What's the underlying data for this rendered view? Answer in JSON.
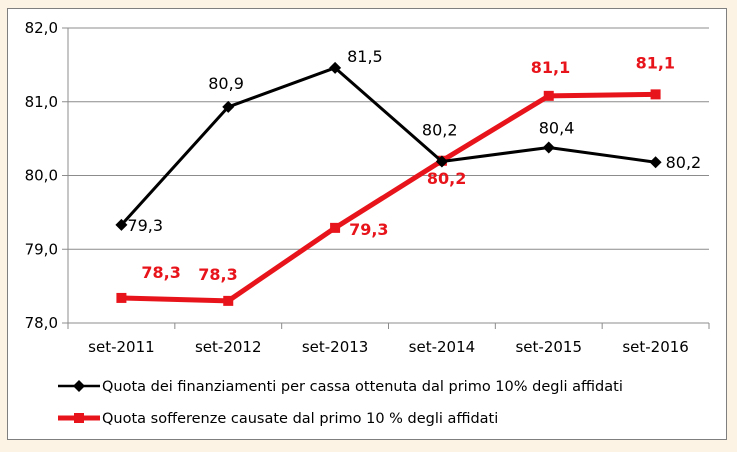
{
  "chart_data": {
    "type": "line",
    "title": "",
    "xlabel": "",
    "ylabel": "",
    "categories": [
      "set-2011",
      "set-2012",
      "set-2013",
      "set-2014",
      "set-2015",
      "set-2016"
    ],
    "ylim": [
      78.0,
      82.0
    ],
    "yticks": [
      "78,0",
      "79,0",
      "80,0",
      "81,0",
      "82,0"
    ],
    "grid": true,
    "legend_position": "bottom",
    "series": [
      {
        "name": "Quota dei finanziamenti per cassa ottenuta dal primo 10% degli affidati",
        "color": "#000000",
        "marker": "diamond",
        "values": [
          79.33,
          80.93,
          81.46,
          80.19,
          80.38,
          80.18
        ],
        "labels": [
          "79,3",
          "80,9",
          "81,5",
          "80,2",
          "80,4",
          "80,2"
        ]
      },
      {
        "name": "Quota sofferenze causate dal primo 10 % degli affidati",
        "color": "#e8141b",
        "marker": "square",
        "values": [
          78.34,
          78.3,
          79.29,
          80.2,
          81.08,
          81.1
        ],
        "labels": [
          "78,3",
          "78,3",
          "79,3",
          "80,2",
          "81,1",
          "81,1"
        ]
      }
    ]
  }
}
